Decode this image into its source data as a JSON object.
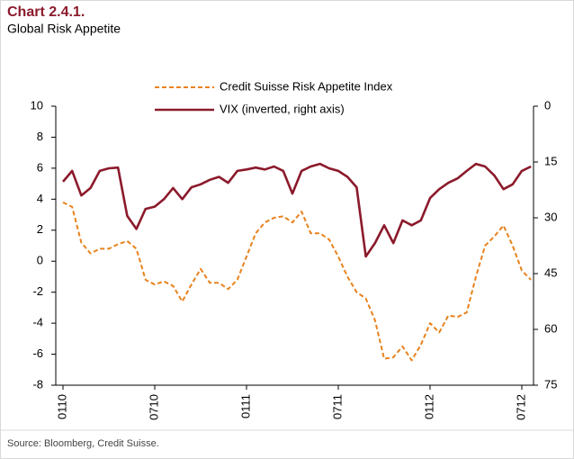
{
  "chart_data": {
    "type": "line",
    "title": "Chart 2.4.1.",
    "subtitle": "Global Risk Appetite",
    "source": "Source: Bloomberg, Credit Suisse.",
    "categories": [
      "0110",
      null,
      null,
      null,
      null,
      null,
      null,
      null,
      null,
      null,
      "0710",
      null,
      null,
      null,
      null,
      null,
      null,
      null,
      null,
      null,
      "0111",
      null,
      null,
      null,
      null,
      null,
      null,
      null,
      null,
      null,
      "0711",
      null,
      null,
      null,
      null,
      null,
      null,
      null,
      null,
      null,
      "0112",
      null,
      null,
      null,
      null,
      null,
      null,
      null,
      null,
      null,
      "0712",
      null
    ],
    "ylim": [
      -8,
      10
    ],
    "yticks": [
      -8,
      -6,
      -4,
      -2,
      0,
      2,
      4,
      6,
      8,
      10
    ],
    "y2lim": [
      75,
      0
    ],
    "y2ticks": [
      75,
      60,
      45,
      30,
      15,
      0
    ],
    "series": [
      {
        "name": "Credit Suisse Risk Appetite Index",
        "color": "#e8821e",
        "dashed": true,
        "values": [
          3.8,
          3.5,
          1.2,
          0.5,
          0.8,
          0.8,
          1.1,
          1.3,
          0.8,
          -1.2,
          -1.5,
          -1.3,
          -1.6,
          -2.6,
          -1.5,
          -0.5,
          -1.4,
          -1.4,
          -1.8,
          -1.2,
          0.3,
          1.8,
          2.5,
          2.8,
          2.9,
          2.5,
          3.2,
          1.8,
          1.8,
          1.4,
          0.3,
          -1,
          -2,
          -2.4,
          -3.8,
          -6.3,
          -6.2,
          -5.5,
          -6.4,
          -5.4,
          -4,
          -4.6,
          -3.5,
          -3.6,
          -3.3,
          -1,
          1,
          1.6,
          2.3,
          1.0,
          -0.6,
          -1.2
        ]
      },
      {
        "name": "VIX (inverted, right axis)",
        "color": "#8b1a2b",
        "axis": "y2",
        "values": [
          20.3,
          17.4,
          24,
          22,
          17.4,
          16.7,
          16.5,
          29.5,
          33,
          27.6,
          27,
          25,
          22,
          25,
          21.8,
          21,
          19.8,
          19,
          20.6,
          17.4,
          17,
          16.5,
          17,
          16.2,
          17.4,
          23.5,
          17.4,
          16.2,
          15.5,
          16.7,
          17.4,
          19,
          21.8,
          40.4,
          36.8,
          32,
          36.8,
          30.7,
          32,
          30.7,
          24.7,
          22.3,
          20.6,
          19.4,
          17.4,
          15.5,
          16.2,
          18.6,
          22.3,
          21,
          17.4,
          16.2
        ]
      }
    ]
  }
}
